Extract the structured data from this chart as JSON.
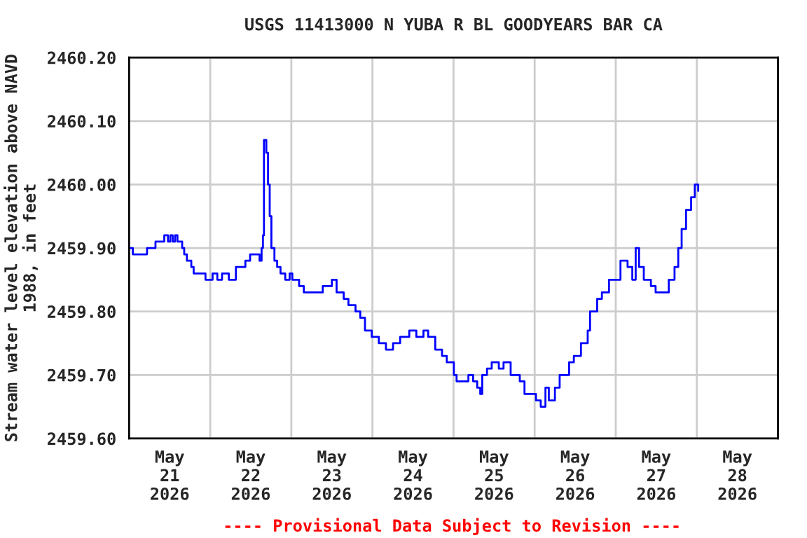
{
  "chart_data": {
    "type": "step",
    "title": "USGS 11413000 N YUBA R BL GOODYEARS BAR CA",
    "ylabel": "Stream water level elevation above NAVD\n1988, in feet",
    "annotations": [
      "---- Provisional Data Subject to Revision ----"
    ],
    "x": [
      "2026-05-21T00:00",
      "2026-05-21T01:06",
      "2026-05-21T04:36",
      "2026-05-21T05:18",
      "2026-05-21T07:24",
      "2026-05-21T07:48",
      "2026-05-21T10:06",
      "2026-05-21T10:24",
      "2026-05-21T11:30",
      "2026-05-21T12:12",
      "2026-05-21T12:54",
      "2026-05-21T13:36",
      "2026-05-21T14:18",
      "2026-05-21T15:42",
      "2026-05-21T16:18",
      "2026-05-21T17:06",
      "2026-05-21T18:24",
      "2026-05-21T19:06",
      "2026-05-21T21:12",
      "2026-05-21T22:36",
      "2026-05-22T00:42",
      "2026-05-22T02:06",
      "2026-05-22T03:30",
      "2026-05-22T05:30",
      "2026-05-22T07:36",
      "2026-05-22T10:24",
      "2026-05-22T11:48",
      "2026-05-22T14:36",
      "2026-05-22T15:12",
      "2026-05-22T15:36",
      "2026-05-22T15:54",
      "2026-05-22T16:36",
      "2026-05-22T17:06",
      "2026-05-22T17:36",
      "2026-05-22T18:06",
      "2026-05-22T19:00",
      "2026-05-22T19:48",
      "2026-05-22T20:48",
      "2026-05-22T22:12",
      "2026-05-22T23:30",
      "2026-05-23T00:18",
      "2026-05-23T02:18",
      "2026-05-23T03:42",
      "2026-05-23T05:48",
      "2026-05-23T07:12",
      "2026-05-23T09:18",
      "2026-05-23T12:00",
      "2026-05-23T13:24",
      "2026-05-23T15:30",
      "2026-05-23T16:54",
      "2026-05-23T19:00",
      "2026-05-23T20:24",
      "2026-05-23T21:48",
      "2026-05-23T23:48",
      "2026-05-24T01:54",
      "2026-05-24T04:00",
      "2026-05-24T06:06",
      "2026-05-24T08:12",
      "2026-05-24T10:54",
      "2026-05-24T13:00",
      "2026-05-24T15:06",
      "2026-05-24T16:30",
      "2026-05-24T18:36",
      "2026-05-24T20:36",
      "2026-05-24T22:00",
      "2026-05-25T00:06",
      "2026-05-25T00:54",
      "2026-05-25T03:00",
      "2026-05-25T04:24",
      "2026-05-25T05:48",
      "2026-05-25T07:00",
      "2026-05-25T07:54",
      "2026-05-25T08:30",
      "2026-05-25T09:54",
      "2026-05-25T11:18",
      "2026-05-25T13:24",
      "2026-05-25T14:48",
      "2026-05-25T16:54",
      "2026-05-25T19:36",
      "2026-05-25T21:00",
      "2026-05-25T22:24",
      "2026-05-26T00:24",
      "2026-05-26T01:48",
      "2026-05-26T03:12",
      "2026-05-26T04:12",
      "2026-05-26T06:00",
      "2026-05-26T07:24",
      "2026-05-26T10:12",
      "2026-05-26T11:36",
      "2026-05-26T13:42",
      "2026-05-26T15:42",
      "2026-05-26T16:24",
      "2026-05-26T18:30",
      "2026-05-26T19:54",
      "2026-05-26T22:00",
      "2026-05-27T00:06",
      "2026-05-27T01:24",
      "2026-05-27T03:30",
      "2026-05-27T04:54",
      "2026-05-27T05:54",
      "2026-05-27T06:54",
      "2026-05-27T08:18",
      "2026-05-27T10:24",
      "2026-05-27T11:48",
      "2026-05-27T14:36",
      "2026-05-27T15:42",
      "2026-05-27T17:24",
      "2026-05-27T18:30",
      "2026-05-27T19:30",
      "2026-05-27T20:48",
      "2026-05-27T22:18",
      "2026-05-27T23:24",
      "2026-05-28T00:24"
    ],
    "series": [
      {
        "color": "#0000ff",
        "values": [
          2459.9,
          2459.89,
          2459.89,
          2459.9,
          2459.9,
          2459.91,
          2459.91,
          2459.92,
          2459.91,
          2459.92,
          2459.91,
          2459.92,
          2459.91,
          2459.9,
          2459.89,
          2459.88,
          2459.87,
          2459.86,
          2459.86,
          2459.85,
          2459.86,
          2459.85,
          2459.86,
          2459.85,
          2459.87,
          2459.88,
          2459.89,
          2459.88,
          2459.9,
          2459.92,
          2460.07,
          2460.05,
          2460.0,
          2459.95,
          2459.9,
          2459.88,
          2459.87,
          2459.86,
          2459.85,
          2459.86,
          2459.85,
          2459.84,
          2459.83,
          2459.83,
          2459.83,
          2459.84,
          2459.85,
          2459.83,
          2459.82,
          2459.81,
          2459.8,
          2459.79,
          2459.77,
          2459.76,
          2459.75,
          2459.74,
          2459.75,
          2459.76,
          2459.77,
          2459.76,
          2459.77,
          2459.76,
          2459.74,
          2459.73,
          2459.72,
          2459.7,
          2459.69,
          2459.69,
          2459.7,
          2459.69,
          2459.68,
          2459.67,
          2459.7,
          2459.71,
          2459.72,
          2459.71,
          2459.72,
          2459.7,
          2459.69,
          2459.67,
          2459.67,
          2459.66,
          2459.65,
          2459.68,
          2459.66,
          2459.68,
          2459.7,
          2459.72,
          2459.73,
          2459.75,
          2459.77,
          2459.8,
          2459.82,
          2459.83,
          2459.85,
          2459.85,
          2459.88,
          2459.87,
          2459.85,
          2459.9,
          2459.87,
          2459.85,
          2459.84,
          2459.83,
          2459.83,
          2459.85,
          2459.87,
          2459.9,
          2459.93,
          2459.96,
          2459.98,
          2460.0,
          2459.99
        ]
      }
    ],
    "xlim": [
      "2026-05-21T00:00",
      "2026-05-29T00:00"
    ],
    "xticks": [
      {
        "value": "2026-05-21T12:00",
        "label": "May\n21\n2026"
      },
      {
        "value": "2026-05-22T00:00",
        "label": null
      },
      {
        "value": "2026-05-22T12:00",
        "label": "May\n22\n2026"
      },
      {
        "value": "2026-05-23T00:00",
        "label": null
      },
      {
        "value": "2026-05-23T12:00",
        "label": "May\n23\n2026"
      },
      {
        "value": "2026-05-24T00:00",
        "label": null
      },
      {
        "value": "2026-05-24T12:00",
        "label": "May\n24\n2026"
      },
      {
        "value": "2026-05-25T00:00",
        "label": null
      },
      {
        "value": "2026-05-25T12:00",
        "label": "May\n25\n2026"
      },
      {
        "value": "2026-05-26T00:00",
        "label": null
      },
      {
        "value": "2026-05-26T12:00",
        "label": "May\n26\n2026"
      },
      {
        "value": "2026-05-27T00:00",
        "label": null
      },
      {
        "value": "2026-05-27T12:00",
        "label": "May\n27\n2026"
      },
      {
        "value": "2026-05-28T00:00",
        "label": null
      },
      {
        "value": "2026-05-28T12:00",
        "label": "May\n28\n2026"
      }
    ],
    "ylim": [
      2459.6,
      2460.2
    ],
    "yticks": [
      {
        "value": 2459.6,
        "label": "2459.60"
      },
      {
        "value": 2459.7,
        "label": "2459.70"
      },
      {
        "value": 2459.8,
        "label": "2459.80"
      },
      {
        "value": 2459.9,
        "label": "2459.90"
      },
      {
        "value": 2460.0,
        "label": "2460.00"
      },
      {
        "value": 2460.1,
        "label": "2460.10"
      },
      {
        "value": 2460.2,
        "label": "2460.20"
      }
    ],
    "grid": true,
    "legend": false
  }
}
